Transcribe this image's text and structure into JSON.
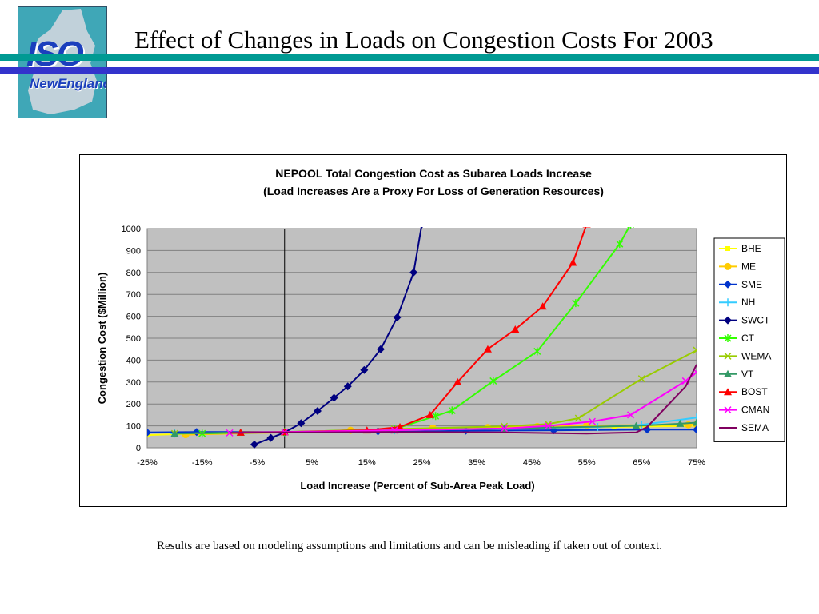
{
  "page": {
    "title": "Effect of Changes in Loads on Congestion Costs For 2003",
    "footnote": "Results are based on modeling assumptions and limitations and can be misleading if taken out of context."
  },
  "logo": {
    "line1": "ISO",
    "line2": "NewEngland"
  },
  "colors": {
    "teal_bar": "#009a93",
    "blue_bar": "#3333cc",
    "plot_bg": "#c0c0c0"
  },
  "chart_data": {
    "type": "line",
    "title": "NEPOOL Total Congestion Cost as Subarea Loads Increase",
    "subtitle": "(Load Increases Are a Proxy For Loss of Generation Resources)",
    "xlabel": "Load Increase (Percent of Sub-Area Peak Load)",
    "ylabel": "Congestion Cost ($Million)",
    "xlim": [
      -25,
      75
    ],
    "ylim": [
      0,
      1000
    ],
    "x_ticks": [
      "-25%",
      "-15%",
      "-5%",
      "5%",
      "15%",
      "25%",
      "35%",
      "45%",
      "55%",
      "65%",
      "75%"
    ],
    "y_ticks": [
      "0",
      "100",
      "200",
      "300",
      "400",
      "500",
      "600",
      "700",
      "800",
      "900",
      "1000"
    ],
    "x_tick_values": [
      -25,
      -15,
      -5,
      5,
      15,
      25,
      35,
      45,
      55,
      65,
      75
    ],
    "y_tick_values": [
      0,
      100,
      200,
      300,
      400,
      500,
      600,
      700,
      800,
      900,
      1000
    ],
    "grid": "horizontal",
    "legend": "right",
    "series": [
      {
        "name": "BHE",
        "color": "#ffff00",
        "marker": "square",
        "x": [
          -25,
          -20,
          0,
          20,
          40,
          60,
          75
        ],
        "y": [
          58,
          62,
          70,
          80,
          90,
          95,
          100
        ]
      },
      {
        "name": "ME",
        "color": "#ffcc00",
        "marker": "circle",
        "x": [
          -18,
          0,
          12,
          27,
          37,
          46,
          55,
          73.5,
          75
        ],
        "y": [
          60,
          70,
          80,
          90,
          92,
          97,
          102,
          105,
          107
        ]
      },
      {
        "name": "SME",
        "color": "#0033cc",
        "marker": "diamond",
        "x": [
          -25,
          -16,
          0,
          17,
          33,
          49,
          66,
          75
        ],
        "y": [
          70,
          72,
          72,
          75,
          78,
          80,
          83,
          83
        ]
      },
      {
        "name": "NH",
        "color": "#33ccff",
        "marker": "plus",
        "x": [
          -20,
          0,
          20,
          40,
          57,
          65,
          75
        ],
        "y": [
          65,
          70,
          80,
          88,
          95,
          105,
          138
        ]
      },
      {
        "name": "SWCT",
        "color": "#000080",
        "marker": "diamond",
        "x": [
          -5.5,
          -2.5,
          0,
          3,
          6,
          9,
          11.5,
          14.5,
          17.5,
          20.5,
          23.5,
          25
        ],
        "y": [
          15,
          45,
          70,
          112,
          168,
          228,
          280,
          355,
          450,
          595,
          800,
          1020
        ]
      },
      {
        "name": "CT",
        "color": "#33ff00",
        "marker": "star",
        "x": [
          -15,
          0,
          20,
          27.5,
          30.5,
          38,
          46,
          53,
          61,
          63
        ],
        "y": [
          65,
          72,
          85,
          145,
          170,
          305,
          440,
          660,
          930,
          1020
        ]
      },
      {
        "name": "WEMA",
        "color": "#99cc00",
        "marker": "x",
        "x": [
          -20,
          0,
          20,
          40,
          48,
          53.5,
          65,
          75
        ],
        "y": [
          65,
          72,
          85,
          98,
          108,
          135,
          315,
          445
        ]
      },
      {
        "name": "VT",
        "color": "#339966",
        "marker": "triangle",
        "x": [
          -20,
          -8,
          0,
          20,
          40,
          64,
          72,
          75
        ],
        "y": [
          65,
          70,
          72,
          80,
          88,
          100,
          110,
          115
        ]
      },
      {
        "name": "BOST",
        "color": "#ff0000",
        "marker": "triangle",
        "x": [
          -8,
          0,
          15,
          21,
          26.5,
          31.5,
          37,
          42,
          47,
          52.5,
          55
        ],
        "y": [
          70,
          72,
          80,
          95,
          150,
          300,
          450,
          540,
          645,
          845,
          1020
        ]
      },
      {
        "name": "CMAN",
        "color": "#ff00ff",
        "marker": "x",
        "x": [
          -10,
          0,
          20,
          40,
          48,
          56,
          63,
          73,
          75
        ],
        "y": [
          68,
          72,
          80,
          88,
          100,
          120,
          150,
          305,
          345
        ]
      },
      {
        "name": "SEMA",
        "color": "#800060",
        "marker": "none",
        "x": [
          -10,
          0,
          20,
          40,
          55,
          64,
          66,
          73,
          75
        ],
        "y": [
          68,
          70,
          72,
          70,
          65,
          70,
          95,
          280,
          380
        ]
      }
    ]
  }
}
